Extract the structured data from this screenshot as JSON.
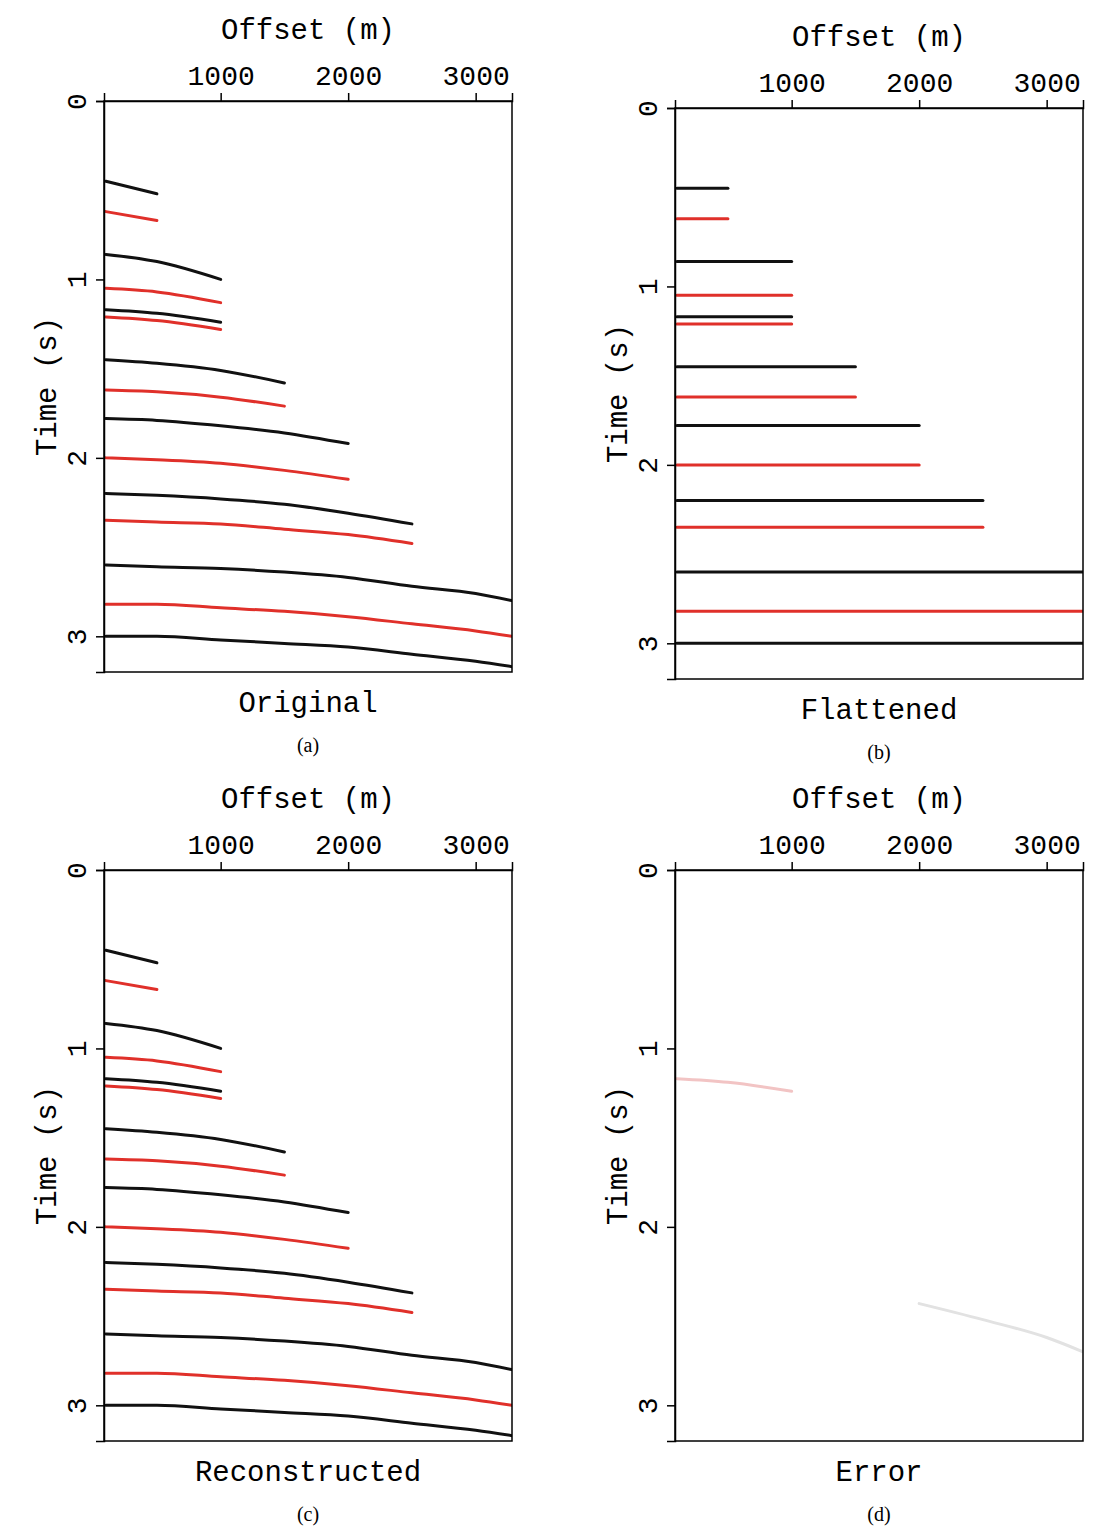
{
  "chart_data": [
    {
      "type": "line",
      "title": "Original",
      "panel_label": "(a)",
      "xlabel": "Offset (m)",
      "ylabel": "Time (s)",
      "xlim": [
        85,
        3285
      ],
      "xticks": [
        1000,
        2000,
        3000
      ],
      "ylim": [
        0,
        3.2
      ],
      "yticks": [
        0,
        1,
        2,
        3
      ],
      "x": [
        100,
        500,
        1000,
        1500,
        2000,
        2500,
        3000,
        3285
      ],
      "series": [
        {
          "color": "#111111",
          "values": [
            0.45,
            0.52,
            null,
            null,
            null,
            null,
            null,
            null
          ]
        },
        {
          "color": "#e0302a",
          "values": [
            0.62,
            0.67,
            null,
            null,
            null,
            null,
            null,
            null
          ]
        },
        {
          "color": "#111111",
          "values": [
            0.86,
            0.9,
            1.0,
            null,
            null,
            null,
            null,
            null
          ]
        },
        {
          "color": "#e0302a",
          "values": [
            1.05,
            1.07,
            1.13,
            null,
            null,
            null,
            null,
            null
          ]
        },
        {
          "color": "#111111",
          "values": [
            1.17,
            1.19,
            1.24,
            null,
            null,
            null,
            null,
            null
          ]
        },
        {
          "color": "#e0302a",
          "values": [
            1.21,
            1.23,
            1.28,
            null,
            null,
            null,
            null,
            null
          ]
        },
        {
          "color": "#111111",
          "values": [
            1.45,
            1.47,
            1.51,
            1.58,
            null,
            null,
            null,
            null
          ]
        },
        {
          "color": "#e0302a",
          "values": [
            1.62,
            1.63,
            1.66,
            1.71,
            null,
            null,
            null,
            null
          ]
        },
        {
          "color": "#111111",
          "values": [
            1.78,
            1.79,
            1.82,
            1.86,
            1.92,
            null,
            null,
            null
          ]
        },
        {
          "color": "#e0302a",
          "values": [
            2.0,
            2.01,
            2.03,
            2.07,
            2.12,
            null,
            null,
            null
          ]
        },
        {
          "color": "#111111",
          "values": [
            2.2,
            2.21,
            2.23,
            2.26,
            2.31,
            2.37,
            null,
            null
          ]
        },
        {
          "color": "#e0302a",
          "values": [
            2.35,
            2.36,
            2.37,
            2.4,
            2.43,
            2.48,
            null,
            null
          ]
        },
        {
          "color": "#111111",
          "values": [
            2.6,
            2.61,
            2.62,
            2.64,
            2.67,
            2.72,
            2.76,
            2.8
          ]
        },
        {
          "color": "#e0302a",
          "values": [
            2.82,
            2.82,
            2.84,
            2.86,
            2.89,
            2.93,
            2.97,
            3.0
          ]
        },
        {
          "color": "#111111",
          "values": [
            3.0,
            3.0,
            3.02,
            3.04,
            3.06,
            3.1,
            3.14,
            3.17
          ]
        }
      ]
    },
    {
      "type": "line",
      "title": "Flattened",
      "panel_label": "(b)",
      "xlabel": "Offset (m)",
      "ylabel": "Time (s)",
      "xlim": [
        85,
        3285
      ],
      "xticks": [
        1000,
        2000,
        3000
      ],
      "ylim": [
        0,
        3.2
      ],
      "yticks": [
        0,
        1,
        2,
        3
      ],
      "x": [
        100,
        500,
        1000,
        1500,
        2000,
        2500,
        3000,
        3285
      ],
      "series": [
        {
          "color": "#111111",
          "values": [
            0.45,
            0.45,
            null,
            null,
            null,
            null,
            null,
            null
          ]
        },
        {
          "color": "#e0302a",
          "values": [
            0.62,
            0.62,
            null,
            null,
            null,
            null,
            null,
            null
          ]
        },
        {
          "color": "#111111",
          "values": [
            0.86,
            0.86,
            0.86,
            null,
            null,
            null,
            null,
            null
          ]
        },
        {
          "color": "#e0302a",
          "values": [
            1.05,
            1.05,
            1.05,
            null,
            null,
            null,
            null,
            null
          ]
        },
        {
          "color": "#111111",
          "values": [
            1.17,
            1.17,
            1.17,
            null,
            null,
            null,
            null,
            null
          ]
        },
        {
          "color": "#e0302a",
          "values": [
            1.21,
            1.21,
            1.21,
            null,
            null,
            null,
            null,
            null
          ]
        },
        {
          "color": "#111111",
          "values": [
            1.45,
            1.45,
            1.45,
            1.45,
            null,
            null,
            null,
            null
          ]
        },
        {
          "color": "#e0302a",
          "values": [
            1.62,
            1.62,
            1.62,
            1.62,
            null,
            null,
            null,
            null
          ]
        },
        {
          "color": "#111111",
          "values": [
            1.78,
            1.78,
            1.78,
            1.78,
            1.78,
            null,
            null,
            null
          ]
        },
        {
          "color": "#e0302a",
          "values": [
            2.0,
            2.0,
            2.0,
            2.0,
            2.0,
            null,
            null,
            null
          ]
        },
        {
          "color": "#111111",
          "values": [
            2.2,
            2.2,
            2.2,
            2.2,
            2.2,
            2.2,
            null,
            null
          ]
        },
        {
          "color": "#e0302a",
          "values": [
            2.35,
            2.35,
            2.35,
            2.35,
            2.35,
            2.35,
            null,
            null
          ]
        },
        {
          "color": "#111111",
          "values": [
            2.6,
            2.6,
            2.6,
            2.6,
            2.6,
            2.6,
            2.6,
            2.6
          ]
        },
        {
          "color": "#e0302a",
          "values": [
            2.82,
            2.82,
            2.82,
            2.82,
            2.82,
            2.82,
            2.82,
            2.82
          ]
        },
        {
          "color": "#111111",
          "values": [
            3.0,
            3.0,
            3.0,
            3.0,
            3.0,
            3.0,
            3.0,
            3.0
          ]
        }
      ]
    },
    {
      "type": "line",
      "title": "Reconstructed",
      "panel_label": "(c)",
      "xlabel": "Offset (m)",
      "ylabel": "Time (s)",
      "xlim": [
        85,
        3285
      ],
      "xticks": [
        1000,
        2000,
        3000
      ],
      "ylim": [
        0,
        3.2
      ],
      "yticks": [
        0,
        1,
        2,
        3
      ],
      "x": [
        100,
        500,
        1000,
        1500,
        2000,
        2500,
        3000,
        3285
      ],
      "series": [
        {
          "color": "#111111",
          "values": [
            0.45,
            0.52,
            null,
            null,
            null,
            null,
            null,
            null
          ]
        },
        {
          "color": "#e0302a",
          "values": [
            0.62,
            0.67,
            null,
            null,
            null,
            null,
            null,
            null
          ]
        },
        {
          "color": "#111111",
          "values": [
            0.86,
            0.9,
            1.0,
            null,
            null,
            null,
            null,
            null
          ]
        },
        {
          "color": "#e0302a",
          "values": [
            1.05,
            1.07,
            1.13,
            null,
            null,
            null,
            null,
            null
          ]
        },
        {
          "color": "#111111",
          "values": [
            1.17,
            1.19,
            1.24,
            null,
            null,
            null,
            null,
            null
          ]
        },
        {
          "color": "#e0302a",
          "values": [
            1.21,
            1.23,
            1.28,
            null,
            null,
            null,
            null,
            null
          ]
        },
        {
          "color": "#111111",
          "values": [
            1.45,
            1.47,
            1.51,
            1.58,
            null,
            null,
            null,
            null
          ]
        },
        {
          "color": "#e0302a",
          "values": [
            1.62,
            1.63,
            1.66,
            1.71,
            null,
            null,
            null,
            null
          ]
        },
        {
          "color": "#111111",
          "values": [
            1.78,
            1.79,
            1.82,
            1.86,
            1.92,
            null,
            null,
            null
          ]
        },
        {
          "color": "#e0302a",
          "values": [
            2.0,
            2.01,
            2.03,
            2.07,
            2.12,
            null,
            null,
            null
          ]
        },
        {
          "color": "#111111",
          "values": [
            2.2,
            2.21,
            2.23,
            2.26,
            2.31,
            2.37,
            null,
            null
          ]
        },
        {
          "color": "#e0302a",
          "values": [
            2.35,
            2.36,
            2.37,
            2.4,
            2.43,
            2.48,
            null,
            null
          ]
        },
        {
          "color": "#111111",
          "values": [
            2.6,
            2.61,
            2.62,
            2.64,
            2.67,
            2.72,
            2.76,
            2.8
          ]
        },
        {
          "color": "#e0302a",
          "values": [
            2.82,
            2.82,
            2.84,
            2.86,
            2.89,
            2.93,
            2.97,
            3.0
          ]
        },
        {
          "color": "#111111",
          "values": [
            3.0,
            3.0,
            3.02,
            3.04,
            3.06,
            3.1,
            3.14,
            3.17
          ]
        }
      ]
    },
    {
      "type": "line",
      "title": "Error",
      "panel_label": "(d)",
      "xlabel": "Offset (m)",
      "ylabel": "Time (s)",
      "xlim": [
        85,
        3285
      ],
      "xticks": [
        1000,
        2000,
        3000
      ],
      "ylim": [
        0,
        3.2
      ],
      "yticks": [
        0,
        1,
        2,
        3
      ],
      "x": [
        100,
        500,
        1000,
        1500,
        2000,
        2500,
        3000,
        3285
      ],
      "series": [
        {
          "color": "#f2c4c4",
          "values": [
            1.17,
            1.19,
            1.24,
            null,
            null,
            null,
            null,
            null
          ]
        },
        {
          "color": "#e2e2e2",
          "values": [
            null,
            null,
            null,
            null,
            2.43,
            2.52,
            2.62,
            2.7
          ]
        }
      ]
    }
  ]
}
